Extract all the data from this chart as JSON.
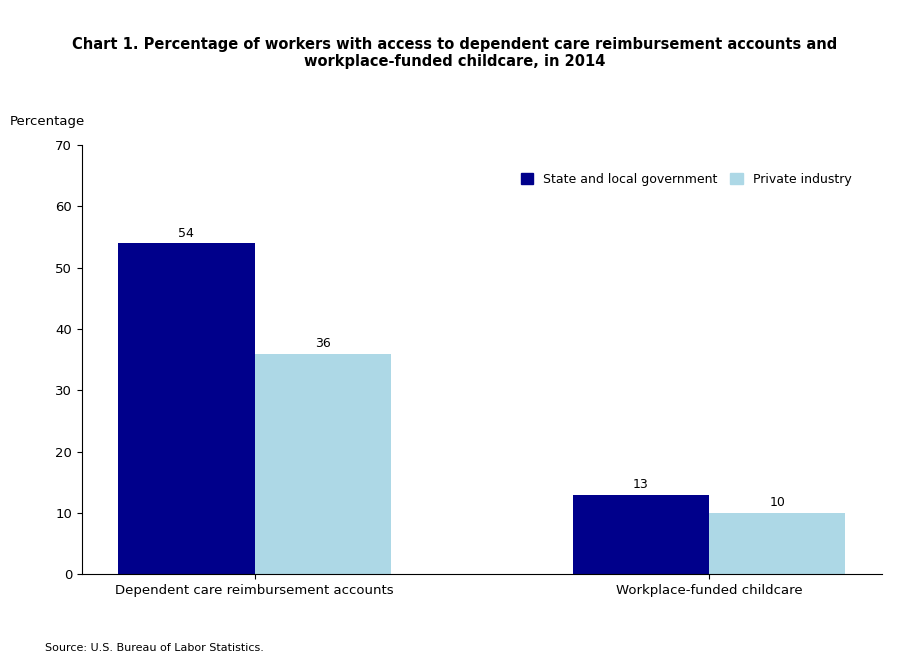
{
  "title": "Chart 1. Percentage of workers with access to dependent care reimbursement accounts and\nworkplace-funded childcare, in 2014",
  "ylabel": "Percentage",
  "categories": [
    "Dependent care reimbursement accounts",
    "Workplace-funded childcare"
  ],
  "series": [
    {
      "label": "State and local government",
      "color": "#00008B",
      "values": [
        54,
        13
      ]
    },
    {
      "label": "Private industry",
      "color": "#ADD8E6",
      "values": [
        36,
        10
      ]
    }
  ],
  "ylim": [
    0,
    70
  ],
  "yticks": [
    0,
    10,
    20,
    30,
    40,
    50,
    60,
    70
  ],
  "bar_width": 0.3,
  "source": "Source: U.S. Bureau of Labor Statistics.",
  "title_fontsize": 10.5,
  "axis_fontsize": 9.5,
  "legend_fontsize": 9,
  "source_fontsize": 8,
  "value_fontsize": 9
}
